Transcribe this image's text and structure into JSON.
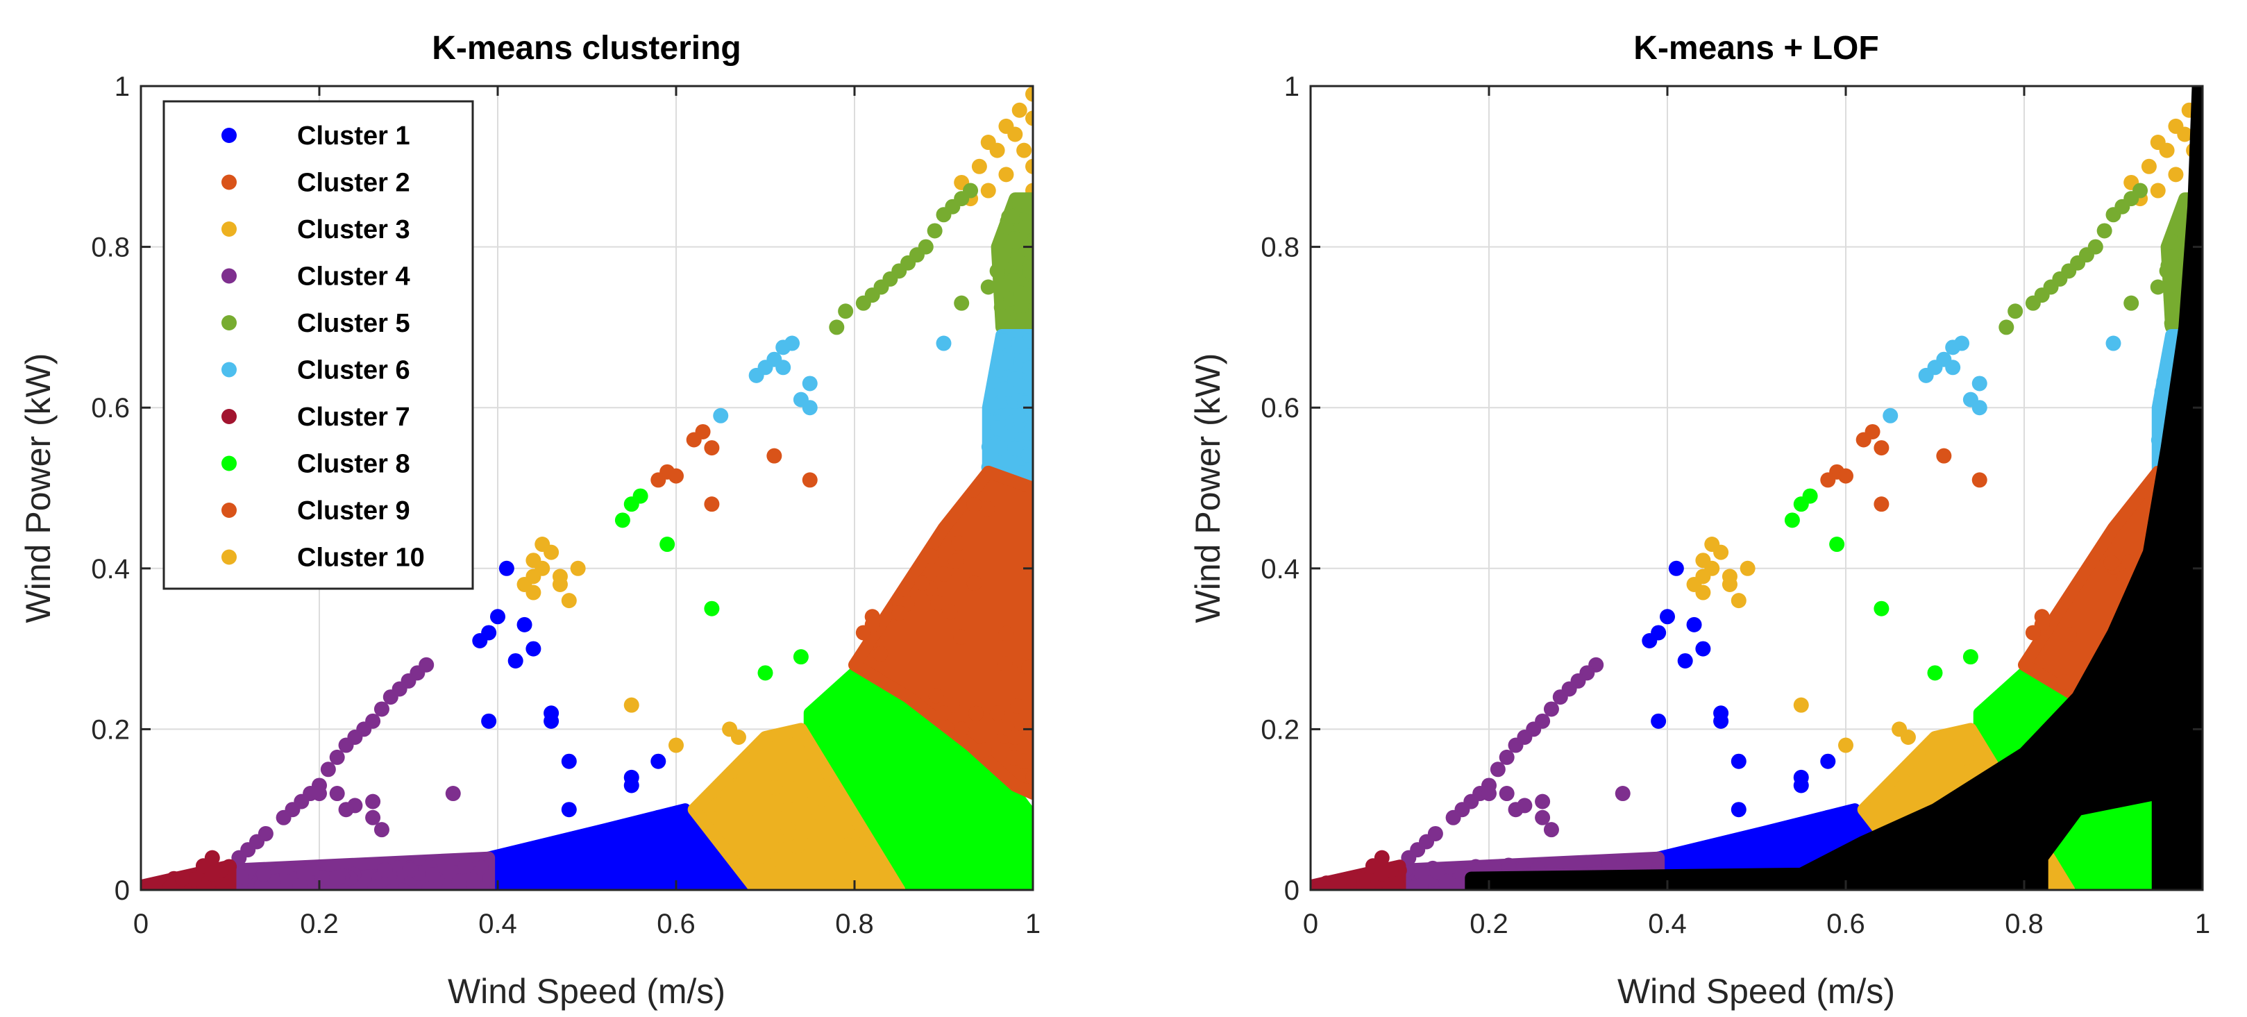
{
  "chart_data": [
    {
      "type": "scatter",
      "title": "K-means clustering",
      "xlabel": "Wind Speed (m/s)",
      "ylabel": "Wind Power (kW)",
      "xlim": [
        0,
        1
      ],
      "ylim": [
        0,
        1
      ],
      "xticks": [
        "0",
        "0.2",
        "0.4",
        "0.6",
        "0.8",
        "1"
      ],
      "yticks": [
        "0",
        "0.2",
        "0.4",
        "0.6",
        "0.8",
        "1"
      ],
      "grid": true,
      "legend_position": "top-left",
      "series": [
        {
          "name": "Cluster 1",
          "color": "#0000ff",
          "region": [
            [
              0.39,
              0.0
            ],
            [
              0.69,
              0.0
            ],
            [
              0.61,
              0.1
            ],
            [
              0.52,
              0.075
            ],
            [
              0.39,
              0.04
            ]
          ],
          "points": [
            [
              0.41,
              0.4
            ],
            [
              0.4,
              0.34
            ],
            [
              0.39,
              0.32
            ],
            [
              0.38,
              0.31
            ],
            [
              0.43,
              0.33
            ],
            [
              0.44,
              0.3
            ],
            [
              0.42,
              0.285
            ],
            [
              0.39,
              0.21
            ],
            [
              0.46,
              0.22
            ],
            [
              0.46,
              0.21
            ],
            [
              0.48,
              0.16
            ],
            [
              0.55,
              0.14
            ],
            [
              0.55,
              0.13
            ],
            [
              0.58,
              0.16
            ],
            [
              0.48,
              0.1
            ],
            [
              0.58,
              0.09
            ],
            [
              0.6,
              0.08
            ]
          ]
        },
        {
          "name": "Cluster 2",
          "color": "#d95319",
          "region": [],
          "points": [
            [
              0.63,
              0.57
            ],
            [
              0.62,
              0.56
            ],
            [
              0.64,
              0.55
            ],
            [
              0.64,
              0.48
            ],
            [
              0.59,
              0.52
            ],
            [
              0.6,
              0.515
            ],
            [
              0.71,
              0.54
            ],
            [
              0.75,
              0.51
            ],
            [
              0.58,
              0.51
            ]
          ]
        },
        {
          "name": "Cluster 3",
          "color": "#edb120",
          "region": [],
          "points": [
            [
              0.92,
              0.88
            ],
            [
              0.95,
              0.93
            ],
            [
              0.97,
              0.95
            ],
            [
              0.985,
              0.97
            ],
            [
              1.0,
              0.99
            ],
            [
              1.0,
              0.96
            ],
            [
              0.98,
              0.94
            ],
            [
              0.96,
              0.92
            ],
            [
              0.94,
              0.9
            ],
            [
              1.0,
              0.9
            ],
            [
              0.99,
              0.92
            ],
            [
              0.97,
              0.89
            ],
            [
              0.95,
              0.87
            ],
            [
              0.93,
              0.86
            ],
            [
              1.0,
              0.87
            ]
          ]
        },
        {
          "name": "Cluster 4",
          "color": "#7e2f8e",
          "region": [
            [
              0.1,
              0.0
            ],
            [
              0.39,
              0.0
            ],
            [
              0.39,
              0.04
            ],
            [
              0.1,
              0.025
            ]
          ],
          "points": [
            [
              0.32,
              0.28
            ],
            [
              0.31,
              0.27
            ],
            [
              0.3,
              0.26
            ],
            [
              0.29,
              0.25
            ],
            [
              0.28,
              0.24
            ],
            [
              0.27,
              0.225
            ],
            [
              0.26,
              0.21
            ],
            [
              0.25,
              0.2
            ],
            [
              0.24,
              0.19
            ],
            [
              0.23,
              0.18
            ],
            [
              0.22,
              0.165
            ],
            [
              0.21,
              0.15
            ],
            [
              0.2,
              0.13
            ],
            [
              0.19,
              0.12
            ],
            [
              0.18,
              0.11
            ],
            [
              0.17,
              0.1
            ],
            [
              0.16,
              0.09
            ],
            [
              0.14,
              0.07
            ],
            [
              0.13,
              0.06
            ],
            [
              0.12,
              0.05
            ],
            [
              0.11,
              0.04
            ],
            [
              0.26,
              0.11
            ],
            [
              0.24,
              0.105
            ],
            [
              0.23,
              0.1
            ],
            [
              0.26,
              0.09
            ],
            [
              0.27,
              0.075
            ],
            [
              0.35,
              0.12
            ],
            [
              0.22,
              0.12
            ],
            [
              0.2,
              0.12
            ]
          ]
        },
        {
          "name": "Cluster 5",
          "color": "#77ac30",
          "region": [
            [
              0.965,
              0.7
            ],
            [
              1.0,
              0.7
            ],
            [
              1.0,
              0.86
            ],
            [
              0.98,
              0.86
            ],
            [
              0.96,
              0.8
            ]
          ],
          "points": [
            [
              0.88,
              0.8
            ],
            [
              0.89,
              0.82
            ],
            [
              0.9,
              0.84
            ],
            [
              0.91,
              0.85
            ],
            [
              0.92,
              0.86
            ],
            [
              0.93,
              0.87
            ],
            [
              0.86,
              0.78
            ],
            [
              0.85,
              0.77
            ],
            [
              0.83,
              0.75
            ],
            [
              0.82,
              0.74
            ],
            [
              0.81,
              0.73
            ],
            [
              0.79,
              0.72
            ],
            [
              0.78,
              0.7
            ],
            [
              0.84,
              0.76
            ],
            [
              0.87,
              0.79
            ],
            [
              0.92,
              0.73
            ],
            [
              0.95,
              0.75
            ],
            [
              0.96,
              0.77
            ]
          ]
        },
        {
          "name": "Cluster 6",
          "color": "#4dbeee",
          "region": [
            [
              0.95,
              0.52
            ],
            [
              1.0,
              0.5
            ],
            [
              1.0,
              0.69
            ],
            [
              0.965,
              0.69
            ],
            [
              0.95,
              0.6
            ]
          ],
          "points": [
            [
              0.73,
              0.68
            ],
            [
              0.72,
              0.675
            ],
            [
              0.71,
              0.66
            ],
            [
              0.7,
              0.65
            ],
            [
              0.69,
              0.64
            ],
            [
              0.75,
              0.63
            ],
            [
              0.74,
              0.61
            ],
            [
              0.75,
              0.6
            ],
            [
              0.72,
              0.65
            ],
            [
              0.65,
              0.59
            ],
            [
              0.9,
              0.68
            ]
          ]
        },
        {
          "name": "Cluster 7",
          "color": "#a2142f",
          "region": [
            [
              0.0,
              0.0
            ],
            [
              0.1,
              0.0
            ],
            [
              0.1,
              0.03
            ],
            [
              0.0,
              0.005
            ]
          ],
          "points": [
            [
              0.08,
              0.04
            ],
            [
              0.07,
              0.03
            ],
            [
              0.09,
              0.025
            ],
            [
              0.08,
              0.02
            ]
          ]
        },
        {
          "name": "Cluster 8",
          "color": "#00ff00",
          "region": [
            [
              0.75,
              0.22
            ],
            [
              0.81,
              0.28
            ],
            [
              0.86,
              0.24
            ],
            [
              0.93,
              0.18
            ],
            [
              0.98,
              0.12
            ],
            [
              1.0,
              0.09
            ],
            [
              1.0,
              0.0
            ],
            [
              0.84,
              0.0
            ],
            [
              0.78,
              0.13
            ],
            [
              0.75,
              0.2
            ]
          ],
          "points": [
            [
              0.54,
              0.46
            ],
            [
              0.55,
              0.48
            ],
            [
              0.56,
              0.49
            ],
            [
              0.59,
              0.43
            ],
            [
              0.64,
              0.35
            ],
            [
              0.7,
              0.27
            ],
            [
              0.74,
              0.29
            ],
            [
              0.9,
              0.06
            ],
            [
              0.92,
              0.04
            ],
            [
              0.94,
              0.05
            ],
            [
              0.96,
              0.08
            ]
          ]
        },
        {
          "name": "Cluster 9",
          "color": "#d95319",
          "region": [
            [
              0.8,
              0.28
            ],
            [
              0.9,
              0.45
            ],
            [
              0.95,
              0.52
            ],
            [
              1.0,
              0.5
            ],
            [
              1.0,
              0.12
            ],
            [
              0.98,
              0.13
            ],
            [
              0.93,
              0.18
            ],
            [
              0.86,
              0.24
            ]
          ],
          "points": [
            [
              0.82,
              0.34
            ],
            [
              0.82,
              0.33
            ],
            [
              0.81,
              0.32
            ],
            [
              0.9,
              0.22
            ],
            [
              0.92,
              0.2
            ],
            [
              0.96,
              0.22
            ],
            [
              0.98,
              0.19
            ],
            [
              0.99,
              0.16
            ],
            [
              1.0,
              0.14
            ]
          ]
        },
        {
          "name": "Cluster 10",
          "color": "#edb120",
          "region": [
            [
              0.62,
              0.1
            ],
            [
              0.7,
              0.19
            ],
            [
              0.74,
              0.2
            ],
            [
              0.85,
              0.0
            ],
            [
              0.69,
              0.0
            ]
          ],
          "points": [
            [
              0.45,
              0.43
            ],
            [
              0.46,
              0.42
            ],
            [
              0.44,
              0.41
            ],
            [
              0.45,
              0.4
            ],
            [
              0.44,
              0.39
            ],
            [
              0.47,
              0.39
            ],
            [
              0.49,
              0.4
            ],
            [
              0.47,
              0.38
            ],
            [
              0.44,
              0.37
            ],
            [
              0.48,
              0.36
            ],
            [
              0.43,
              0.38
            ],
            [
              0.55,
              0.23
            ],
            [
              0.66,
              0.2
            ],
            [
              0.67,
              0.19
            ],
            [
              0.6,
              0.18
            ]
          ]
        }
      ]
    },
    {
      "type": "scatter",
      "title": "K-means + LOF",
      "xlabel": "Wind Speed (m/s)",
      "ylabel": "Wind Power (kW)",
      "xlim": [
        0,
        1
      ],
      "ylim": [
        0,
        1
      ],
      "xticks": [
        "0",
        "0.2",
        "0.4",
        "0.6",
        "0.8",
        "1"
      ],
      "yticks": [
        "0",
        "0.2",
        "0.4",
        "0.6",
        "0.8",
        "1"
      ],
      "grid": true,
      "outlier_color": "#000000",
      "outlier_region": [
        [
          0.18,
          0.0
        ],
        [
          0.18,
          0.015
        ],
        [
          0.55,
          0.02
        ],
        [
          0.62,
          0.06
        ],
        [
          0.7,
          0.1
        ],
        [
          0.8,
          0.17
        ],
        [
          0.86,
          0.24
        ],
        [
          0.9,
          0.32
        ],
        [
          0.94,
          0.42
        ],
        [
          0.96,
          0.55
        ],
        [
          0.98,
          0.7
        ],
        [
          0.99,
          0.85
        ],
        [
          0.995,
          1.0
        ],
        [
          1.0,
          1.0
        ],
        [
          1.0,
          0.0
        ],
        [
          0.95,
          0.0
        ],
        [
          0.95,
          0.12
        ],
        [
          0.86,
          0.1
        ],
        [
          0.82,
          0.04
        ],
        [
          0.82,
          0.0
        ]
      ]
    }
  ]
}
